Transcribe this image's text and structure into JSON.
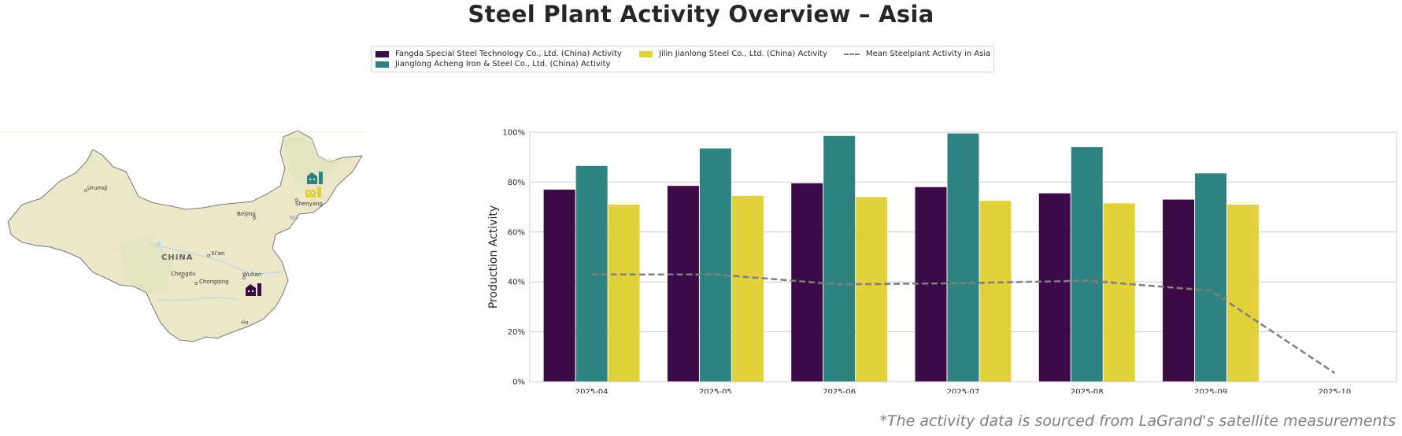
{
  "title": "Steel Plant Activity Overview – Asia",
  "footnote": "*The activity data is sourced from LaGrand's satellite measurements",
  "legend": [
    {
      "label": "Fangda Special Steel Technology Co., Ltd. (China) Activity",
      "color": "#3b0a47",
      "kind": "bar"
    },
    {
      "label": "Jianglong Acheng Iron & Steel Co., Ltd. (China) Activity",
      "color": "#2e8380",
      "kind": "bar"
    },
    {
      "label": "Jilin Jianlong Steel Co., Ltd. (China) Activity",
      "color": "#e2d13b",
      "kind": "bar"
    },
    {
      "label": "Mean Steelplant Activity in Asia",
      "color": "#7f7f7f",
      "kind": "line"
    }
  ],
  "map": {
    "country_label": "CHINA",
    "cities": [
      "Urumqi",
      "Beijing",
      "Shenyang",
      "Xi'an",
      "Chengdu",
      "Chongqing",
      "Wuhan"
    ],
    "extra_labels": [
      "NO",
      "Ho"
    ]
  },
  "chart_data": {
    "type": "bar",
    "categories": [
      "2025-04",
      "2025-05",
      "2025-06",
      "2025-07",
      "2025-08",
      "2025-09",
      "2025-10"
    ],
    "series": [
      {
        "name": "Fangda Special Steel Technology Co., Ltd. (China) Activity",
        "color": "#3b0a47",
        "values": [
          77,
          78.5,
          79.5,
          78,
          75.5,
          73,
          null
        ]
      },
      {
        "name": "Jianglong Acheng Iron & Steel Co., Ltd. (China) Activity",
        "color": "#2e8380",
        "values": [
          86.5,
          93.5,
          98.5,
          99.5,
          94,
          83.5,
          null
        ]
      },
      {
        "name": "Jilin Jianlong Steel Co., Ltd. (China) Activity",
        "color": "#e2d13b",
        "values": [
          71,
          74.5,
          74,
          72.5,
          71.5,
          71,
          null
        ]
      }
    ],
    "line": {
      "name": "Mean Steelplant Activity in Asia",
      "color": "#7f7f7f",
      "style": "dashed",
      "values": [
        43,
        43,
        39,
        39.5,
        40.5,
        36.5,
        3.5
      ]
    },
    "ylabel": "Production Activity",
    "xlabel": "",
    "ylim": [
      0,
      100
    ],
    "yticks": [
      "0%",
      "20%",
      "40%",
      "60%",
      "80%",
      "100%"
    ],
    "ytick_values": [
      0,
      20,
      40,
      60,
      80,
      100
    ],
    "grid": true
  }
}
